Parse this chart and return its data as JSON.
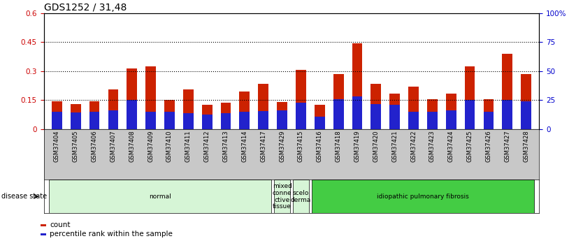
{
  "title": "GDS1252 / 31,48",
  "categories": [
    "GSM37404",
    "GSM37405",
    "GSM37406",
    "GSM37407",
    "GSM37408",
    "GSM37409",
    "GSM37410",
    "GSM37411",
    "GSM37412",
    "GSM37413",
    "GSM37414",
    "GSM37417",
    "GSM37429",
    "GSM37415",
    "GSM37416",
    "GSM37418",
    "GSM37419",
    "GSM37420",
    "GSM37421",
    "GSM37422",
    "GSM37423",
    "GSM37424",
    "GSM37425",
    "GSM37426",
    "GSM37427",
    "GSM37428"
  ],
  "count_values": [
    0.145,
    0.13,
    0.145,
    0.205,
    0.315,
    0.325,
    0.15,
    0.205,
    0.125,
    0.135,
    0.195,
    0.235,
    0.14,
    0.305,
    0.125,
    0.285,
    0.445,
    0.235,
    0.185,
    0.22,
    0.155,
    0.185,
    0.325,
    0.155,
    0.39,
    0.285
  ],
  "percentile_values": [
    0.09,
    0.085,
    0.09,
    0.095,
    0.15,
    0.09,
    0.09,
    0.08,
    0.075,
    0.082,
    0.09,
    0.092,
    0.095,
    0.135,
    0.065,
    0.155,
    0.17,
    0.13,
    0.125,
    0.088,
    0.09,
    0.095,
    0.15,
    0.09,
    0.15,
    0.142
  ],
  "ylim_left": [
    0,
    0.6
  ],
  "ylim_right": [
    0,
    100
  ],
  "yticks_left": [
    0,
    0.15,
    0.3,
    0.45,
    0.6
  ],
  "yticks_right": [
    0,
    25,
    50,
    75,
    100
  ],
  "ytick_labels_left": [
    "0",
    "0.15",
    "0.3",
    "0.45",
    "0.6"
  ],
  "ytick_labels_right": [
    "0",
    "25",
    "50",
    "75",
    "100%"
  ],
  "hlines": [
    0.15,
    0.3,
    0.45
  ],
  "disease_groups": [
    {
      "label": "normal",
      "start": 0,
      "end": 12,
      "color": "#d6f5d6"
    },
    {
      "label": "mixed\nconne\nctive\ntissue",
      "start": 12,
      "end": 13,
      "color": "#d6f5d6"
    },
    {
      "label": "scelo\nderma",
      "start": 13,
      "end": 14,
      "color": "#d6f5d6"
    },
    {
      "label": "idiopathic pulmonary fibrosis",
      "start": 14,
      "end": 26,
      "color": "#44cc44"
    }
  ],
  "bar_color_red": "#cc2200",
  "bar_color_blue": "#2222cc",
  "bar_width": 0.55,
  "blue_bar_width": 0.55,
  "tick_label_color_left": "#cc0000",
  "tick_label_color_right": "#0000cc",
  "title_fontsize": 10,
  "tick_fontsize": 7.5,
  "disease_label": "disease state",
  "legend_count": "count",
  "legend_percentile": "percentile rank within the sample"
}
